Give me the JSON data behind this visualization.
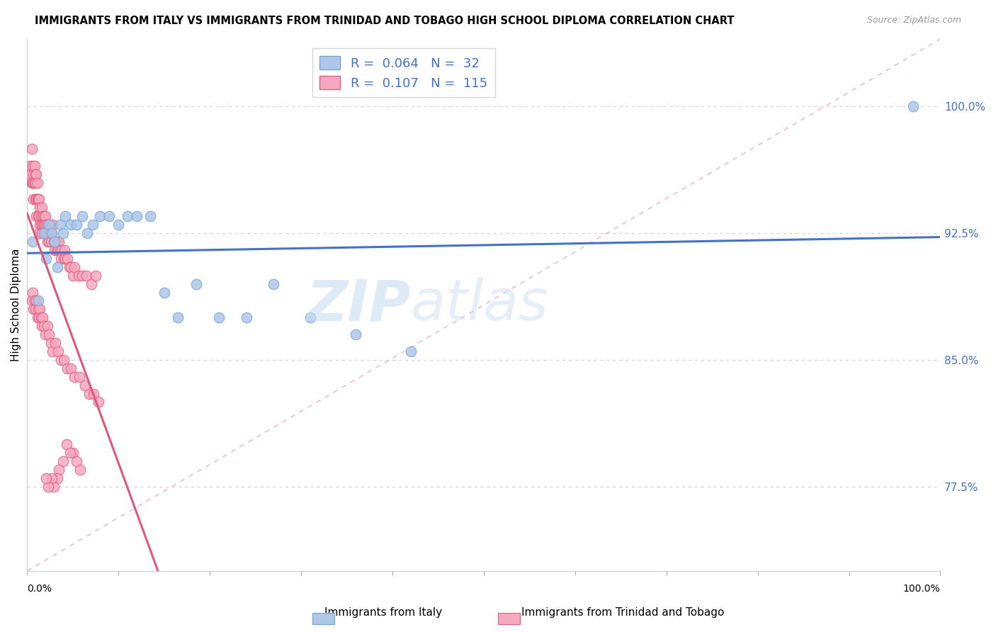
{
  "title": "IMMIGRANTS FROM ITALY VS IMMIGRANTS FROM TRINIDAD AND TOBAGO HIGH SCHOOL DIPLOMA CORRELATION CHART",
  "source": "Source: ZipAtlas.com",
  "ylabel": "High School Diploma",
  "ytick_labels": [
    "100.0%",
    "92.5%",
    "85.0%",
    "77.5%"
  ],
  "ytick_values": [
    1.0,
    0.925,
    0.85,
    0.775
  ],
  "xlim": [
    0.0,
    1.0
  ],
  "ylim": [
    0.725,
    1.04
  ],
  "legend_r_italy": "0.064",
  "legend_n_italy": "32",
  "legend_r_tt": "0.107",
  "legend_n_tt": "115",
  "italy_color": "#aec6e8",
  "tt_color": "#f5a8bf",
  "italy_edge": "#6fa8d8",
  "tt_edge": "#e06080",
  "italy_line_color": "#4472C4",
  "tt_line_color": "#e05878",
  "diag_line_color": "#e0b0c0",
  "watermark_zip": "ZIP",
  "watermark_atlas": "atlas",
  "italy_x": [
    0.006,
    0.012,
    0.018,
    0.021,
    0.024,
    0.027,
    0.03,
    0.033,
    0.036,
    0.039,
    0.042,
    0.048,
    0.054,
    0.06,
    0.066,
    0.072,
    0.08,
    0.09,
    0.1,
    0.11,
    0.12,
    0.135,
    0.15,
    0.165,
    0.185,
    0.21,
    0.24,
    0.27,
    0.31,
    0.36,
    0.42,
    0.97
  ],
  "italy_y": [
    0.92,
    0.885,
    0.925,
    0.91,
    0.93,
    0.925,
    0.92,
    0.905,
    0.93,
    0.925,
    0.935,
    0.93,
    0.93,
    0.935,
    0.925,
    0.93,
    0.935,
    0.935,
    0.93,
    0.935,
    0.935,
    0.935,
    0.89,
    0.875,
    0.895,
    0.875,
    0.875,
    0.895,
    0.875,
    0.865,
    0.855,
    1.0
  ],
  "tt_x": [
    0.003,
    0.004,
    0.005,
    0.005,
    0.006,
    0.006,
    0.007,
    0.007,
    0.007,
    0.008,
    0.008,
    0.009,
    0.009,
    0.009,
    0.01,
    0.01,
    0.01,
    0.011,
    0.011,
    0.012,
    0.012,
    0.013,
    0.013,
    0.013,
    0.014,
    0.014,
    0.015,
    0.015,
    0.016,
    0.016,
    0.017,
    0.017,
    0.018,
    0.018,
    0.019,
    0.019,
    0.02,
    0.02,
    0.021,
    0.021,
    0.022,
    0.022,
    0.023,
    0.024,
    0.025,
    0.025,
    0.026,
    0.027,
    0.028,
    0.029,
    0.03,
    0.031,
    0.032,
    0.033,
    0.034,
    0.035,
    0.036,
    0.037,
    0.038,
    0.04,
    0.041,
    0.042,
    0.044,
    0.046,
    0.048,
    0.05,
    0.052,
    0.056,
    0.06,
    0.065,
    0.07,
    0.075,
    0.005,
    0.006,
    0.007,
    0.008,
    0.009,
    0.01,
    0.011,
    0.012,
    0.013,
    0.014,
    0.015,
    0.016,
    0.017,
    0.018,
    0.02,
    0.022,
    0.024,
    0.026,
    0.028,
    0.031,
    0.034,
    0.037,
    0.04,
    0.044,
    0.048,
    0.052,
    0.057,
    0.063,
    0.068,
    0.073,
    0.078,
    0.05,
    0.054,
    0.058,
    0.043,
    0.047,
    0.039,
    0.035,
    0.033,
    0.029,
    0.027,
    0.023,
    0.021
  ],
  "tt_y": [
    0.965,
    0.96,
    0.955,
    0.975,
    0.955,
    0.965,
    0.955,
    0.945,
    0.96,
    0.965,
    0.955,
    0.96,
    0.945,
    0.955,
    0.945,
    0.935,
    0.96,
    0.945,
    0.955,
    0.945,
    0.935,
    0.945,
    0.935,
    0.925,
    0.94,
    0.93,
    0.935,
    0.93,
    0.925,
    0.94,
    0.935,
    0.93,
    0.935,
    0.93,
    0.93,
    0.925,
    0.935,
    0.925,
    0.93,
    0.925,
    0.93,
    0.92,
    0.925,
    0.92,
    0.925,
    0.93,
    0.92,
    0.925,
    0.93,
    0.92,
    0.915,
    0.92,
    0.915,
    0.92,
    0.915,
    0.92,
    0.915,
    0.91,
    0.915,
    0.91,
    0.915,
    0.91,
    0.91,
    0.905,
    0.905,
    0.9,
    0.905,
    0.9,
    0.9,
    0.9,
    0.895,
    0.9,
    0.885,
    0.89,
    0.88,
    0.885,
    0.88,
    0.885,
    0.875,
    0.88,
    0.875,
    0.88,
    0.875,
    0.87,
    0.875,
    0.87,
    0.865,
    0.87,
    0.865,
    0.86,
    0.855,
    0.86,
    0.855,
    0.85,
    0.85,
    0.845,
    0.845,
    0.84,
    0.84,
    0.835,
    0.83,
    0.83,
    0.825,
    0.795,
    0.79,
    0.785,
    0.8,
    0.795,
    0.79,
    0.785,
    0.78,
    0.775,
    0.78,
    0.775,
    0.78
  ]
}
